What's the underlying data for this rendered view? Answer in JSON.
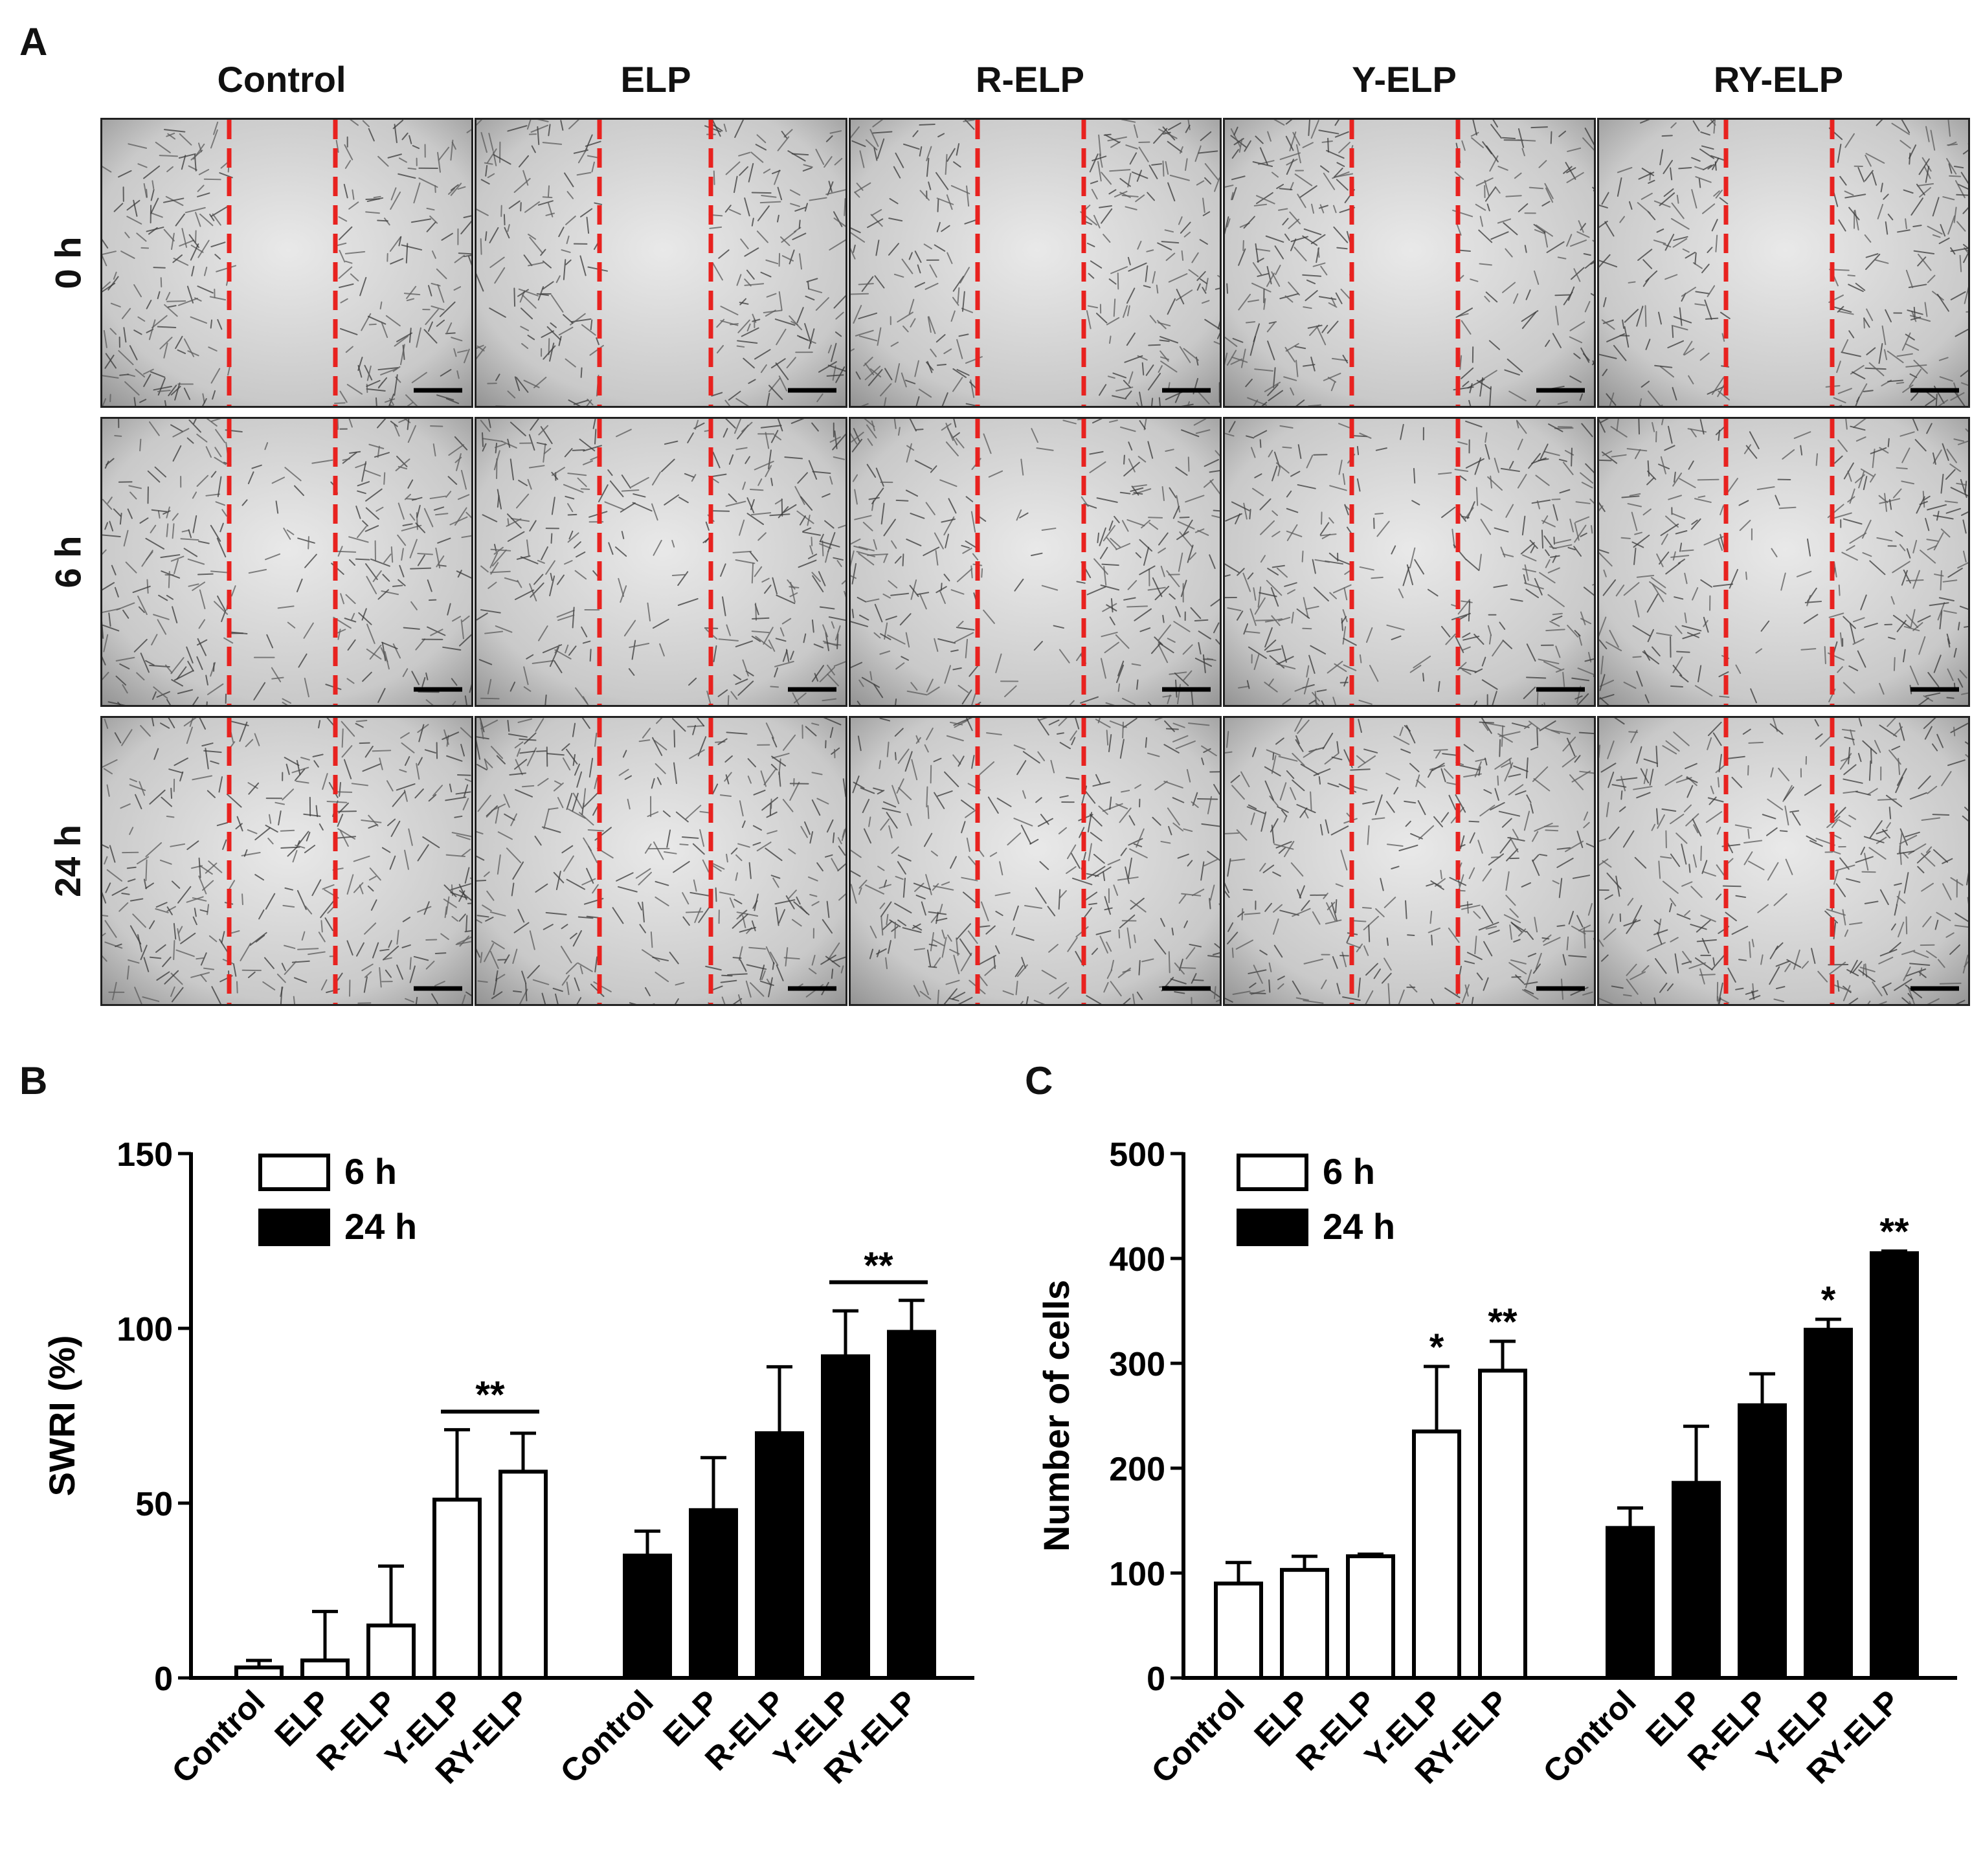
{
  "panels": {
    "a": "A",
    "b": "B",
    "c": "C"
  },
  "microscopy": {
    "columns": [
      "Control",
      "ELP",
      "R-ELP",
      "Y-ELP",
      "RY-ELP"
    ],
    "rows": [
      "0 h",
      "6 h",
      "24 h"
    ],
    "line_color": "#e8221f"
  },
  "chart_data": [
    {
      "type": "bar",
      "panel": "B",
      "title": "",
      "xlabel": "",
      "ylabel": "SWRI (%)",
      "ylim": [
        0,
        150
      ],
      "yticks": [
        0,
        50,
        100,
        150
      ],
      "categories": [
        "Control",
        "ELP",
        "R-ELP",
        "Y-ELP",
        "RY-ELP"
      ],
      "legend": {
        "position": "top-left"
      },
      "series": [
        {
          "name": "6 h",
          "fill": "#ffffff",
          "values": [
            3,
            5,
            15,
            51,
            59
          ],
          "errors": [
            2,
            14,
            17,
            20,
            11
          ]
        },
        {
          "name": "24 h",
          "fill": "#000000",
          "values": [
            35,
            48,
            70,
            92,
            99
          ],
          "errors": [
            7,
            15,
            19,
            13,
            9
          ]
        }
      ],
      "significance": [
        {
          "label": "**",
          "series": 0,
          "between": [
            3,
            4
          ]
        },
        {
          "label": "**",
          "series": 1,
          "between": [
            3,
            4
          ]
        }
      ]
    },
    {
      "type": "bar",
      "panel": "C",
      "title": "",
      "xlabel": "",
      "ylabel": "Number of cells",
      "ylim": [
        0,
        500
      ],
      "yticks": [
        0,
        100,
        200,
        300,
        400,
        500
      ],
      "categories": [
        "Control",
        "ELP",
        "R-ELP",
        "Y-ELP",
        "RY-ELP"
      ],
      "legend": {
        "position": "top-left"
      },
      "series": [
        {
          "name": "6 h",
          "fill": "#ffffff",
          "values": [
            90,
            103,
            116,
            235,
            293
          ],
          "errors": [
            20,
            13,
            2,
            62,
            28
          ]
        },
        {
          "name": "24 h",
          "fill": "#000000",
          "values": [
            143,
            186,
            260,
            332,
            405
          ],
          "errors": [
            19,
            54,
            30,
            10,
            2
          ]
        }
      ],
      "marks": [
        {
          "label": "*",
          "series": 0,
          "index": 3
        },
        {
          "label": "**",
          "series": 0,
          "index": 4
        },
        {
          "label": "*",
          "series": 1,
          "index": 3
        },
        {
          "label": "**",
          "series": 1,
          "index": 4
        }
      ]
    }
  ]
}
